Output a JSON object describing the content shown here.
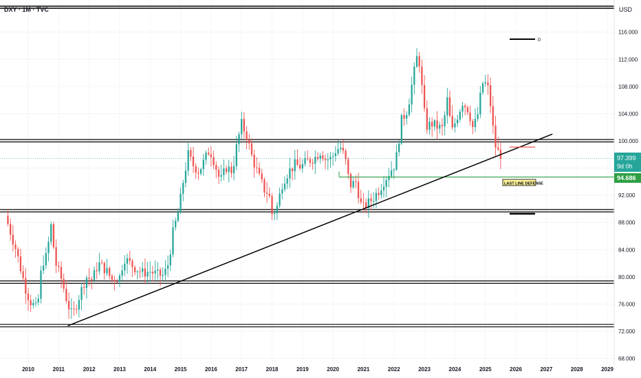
{
  "header": {
    "symbol_label": "DXY · 1M · TVC",
    "currency": "USD"
  },
  "price_tags": {
    "current": "97.399",
    "countdown": "9d 0h",
    "level": "94.686"
  },
  "annotations": {
    "legend_zero": "0",
    "last_line_label": "LAST LINE DEFENSE"
  },
  "colors": {
    "up": "#26a69a",
    "down": "#ef5350",
    "level_green": "#2ea043",
    "line": "#000000"
  },
  "chart_data": {
    "type": "candlestick",
    "title": "",
    "xlabel": "",
    "ylabel": "",
    "xlim": [
      2009.2,
      2029.6
    ],
    "ylim": [
      68,
      118
    ],
    "x_ticks": [
      "2010",
      "2011",
      "2012",
      "2013",
      "2014",
      "2015",
      "2016",
      "2017",
      "2018",
      "2019",
      "2020",
      "2021",
      "2022",
      "2023",
      "2024",
      "2025",
      "2026",
      "2027",
      "2028",
      "2029"
    ],
    "y_ticks": [
      "116.000",
      "112.000",
      "108.000",
      "104.000",
      "100.000",
      "96.000",
      "92.000",
      "88.000",
      "84.000",
      "80.000",
      "76.000",
      "72.000",
      "68.000"
    ],
    "horizontal_levels": [
      100.0,
      89.7,
      79.2,
      72.8
    ],
    "support_level": {
      "value": 94.686,
      "from_x": 2020.2
    },
    "trendline": {
      "start": [
        2011.3,
        72.8
      ],
      "end": [
        2027.2,
        101.0
      ]
    },
    "anchor_points": [
      [
        2009.25,
        89.0
      ],
      [
        2009.6,
        84.0
      ],
      [
        2009.9,
        78.5
      ],
      [
        2010.05,
        76.5
      ],
      [
        2010.3,
        75.2
      ],
      [
        2010.45,
        82.0
      ],
      [
        2010.6,
        83.0
      ],
      [
        2010.75,
        87.5
      ],
      [
        2010.9,
        82.0
      ],
      [
        2011.1,
        79.5
      ],
      [
        2011.3,
        76.0
      ],
      [
        2011.45,
        74.2
      ],
      [
        2011.7,
        77.5
      ],
      [
        2011.9,
        80.0
      ],
      [
        2012.1,
        79.5
      ],
      [
        2012.3,
        82.0
      ],
      [
        2012.55,
        81.0
      ],
      [
        2012.75,
        79.6
      ],
      [
        2013.0,
        80.0
      ],
      [
        2013.15,
        82.8
      ],
      [
        2013.45,
        81.5
      ],
      [
        2013.75,
        80.6
      ],
      [
        2014.0,
        80.8
      ],
      [
        2014.25,
        80.3
      ],
      [
        2014.45,
        80.2
      ],
      [
        2014.6,
        82.0
      ],
      [
        2014.75,
        86.5
      ],
      [
        2014.95,
        90.0
      ],
      [
        2015.1,
        94.5
      ],
      [
        2015.25,
        98.0
      ],
      [
        2015.4,
        96.5
      ],
      [
        2015.6,
        95.5
      ],
      [
        2015.8,
        97.3
      ],
      [
        2015.95,
        98.8
      ],
      [
        2016.1,
        97.0
      ],
      [
        2016.3,
        94.0
      ],
      [
        2016.5,
        96.1
      ],
      [
        2016.7,
        95.5
      ],
      [
        2016.85,
        99.5
      ],
      [
        2017.0,
        102.5
      ],
      [
        2017.15,
        101.0
      ],
      [
        2017.35,
        97.5
      ],
      [
        2017.55,
        95.0
      ],
      [
        2017.75,
        92.8
      ],
      [
        2017.9,
        92.2
      ],
      [
        2018.0,
        89.3
      ],
      [
        2018.15,
        90.0
      ],
      [
        2018.35,
        94.0
      ],
      [
        2018.55,
        95.5
      ],
      [
        2018.75,
        96.5
      ],
      [
        2018.95,
        96.2
      ],
      [
        2019.15,
        97.0
      ],
      [
        2019.4,
        97.5
      ],
      [
        2019.6,
        98.5
      ],
      [
        2019.75,
        97.3
      ],
      [
        2019.95,
        97.4
      ],
      [
        2020.1,
        98.7
      ],
      [
        2020.25,
        99.0
      ],
      [
        2020.4,
        97.4
      ],
      [
        2020.55,
        93.4
      ],
      [
        2020.75,
        94.0
      ],
      [
        2020.95,
        90.0
      ],
      [
        2021.1,
        90.6
      ],
      [
        2021.3,
        91.5
      ],
      [
        2021.5,
        92.7
      ],
      [
        2021.7,
        94.3
      ],
      [
        2021.9,
        95.7
      ],
      [
        2022.05,
        96.7
      ],
      [
        2022.25,
        103.0
      ],
      [
        2022.45,
        104.7
      ],
      [
        2022.6,
        108.6
      ],
      [
        2022.75,
        112.2
      ],
      [
        2022.85,
        111.4
      ],
      [
        2022.95,
        106.0
      ],
      [
        2023.05,
        102.1
      ],
      [
        2023.25,
        102.5
      ],
      [
        2023.45,
        102.0
      ],
      [
        2023.6,
        101.8
      ],
      [
        2023.75,
        106.0
      ],
      [
        2023.9,
        101.3
      ],
      [
        2024.05,
        103.3
      ],
      [
        2024.25,
        105.7
      ],
      [
        2024.45,
        104.5
      ],
      [
        2024.6,
        101.7
      ],
      [
        2024.75,
        103.9
      ],
      [
        2024.9,
        108.5
      ],
      [
        2025.0,
        108.4
      ],
      [
        2025.1,
        107.6
      ],
      [
        2025.2,
        104.2
      ],
      [
        2025.3,
        99.5
      ],
      [
        2025.4,
        98.6
      ],
      [
        2025.5,
        97.399
      ]
    ]
  }
}
